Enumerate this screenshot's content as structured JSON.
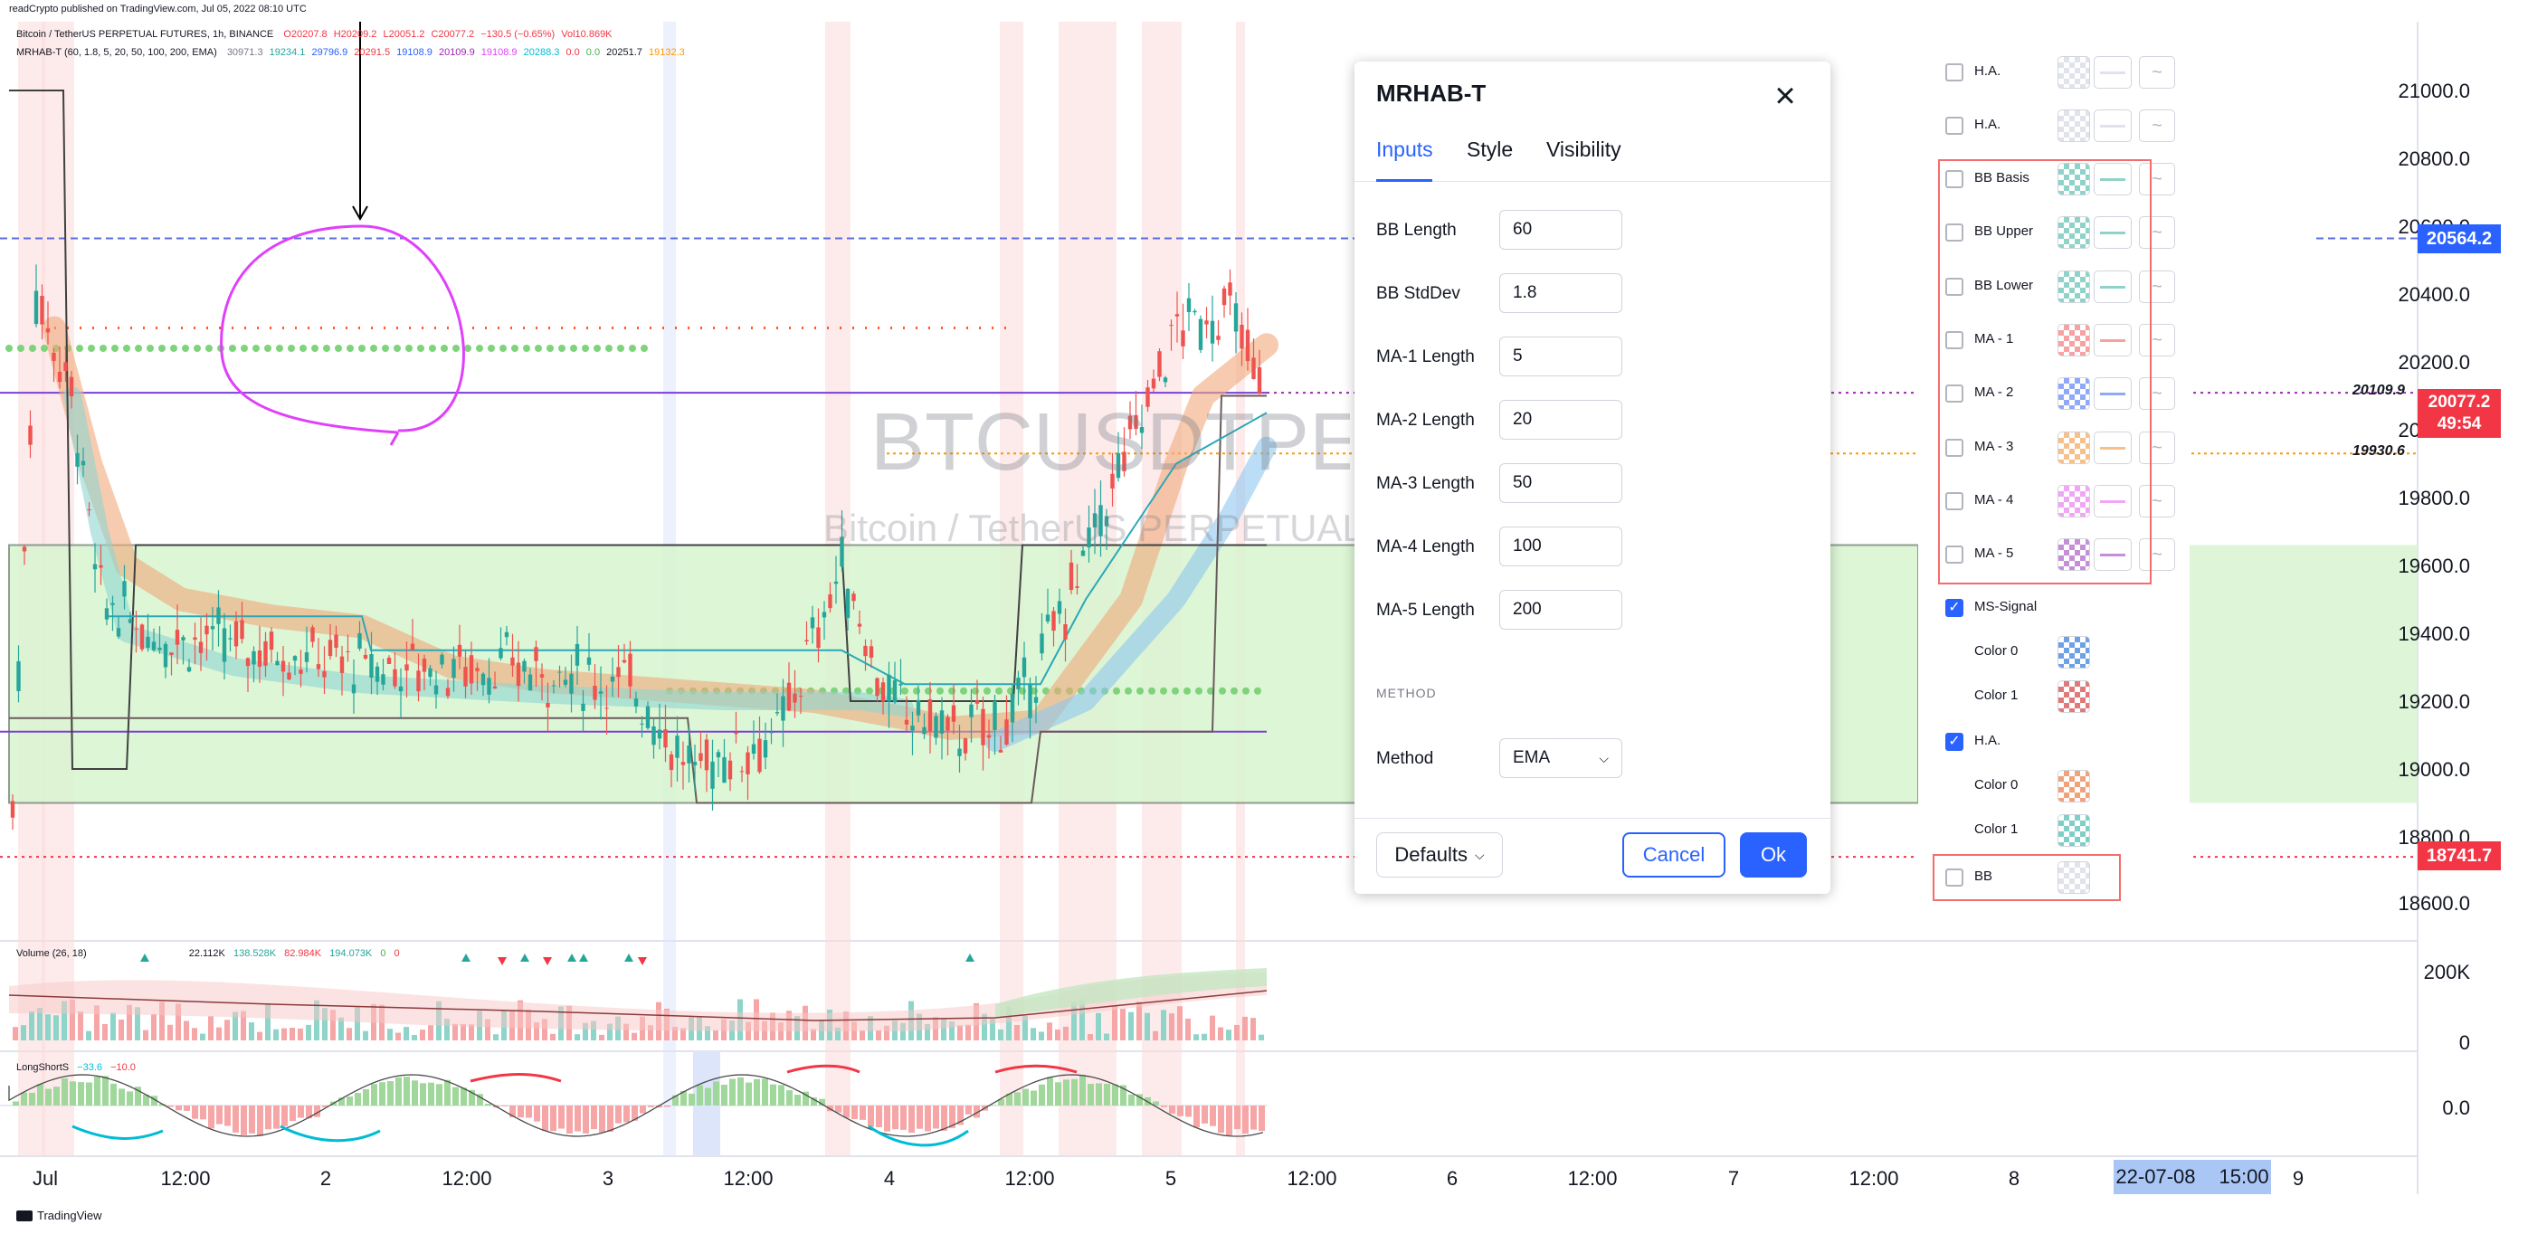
{
  "header": {
    "published": "readCrypto published on TradingView.com, Jul 05, 2022 08:10 UTC",
    "symbol_line": "Bitcoin / TetherUS PERPETUAL FUTURES, 1h, BINANCE",
    "ohlc": [
      "O20207.8",
      "H20209.2",
      "L20051.2",
      "C20077.2",
      "−130.5 (−0.65%)",
      "Vol10.869K"
    ],
    "indicator_line": "MRHAB-T (60, 1.8, 5, 20, 50, 100, 200, EMA)",
    "indicator_values": [
      "30971.3",
      "19234.1",
      "29796.9",
      "20291.5",
      "19108.9",
      "20109.9",
      "19108.9",
      "20288.3",
      "0.0",
      "0.0",
      "20251.7",
      "19132.3"
    ]
  },
  "watermark": {
    "ticker": "BTCUSDTPERP",
    "name": "Bitcoin / TetherUS PERPETUAL FUTURES"
  },
  "price_axis": {
    "labels": [
      "21000.0",
      "20800.0",
      "20600.0",
      "20400.0",
      "20200.0",
      "20000.0",
      "19800.0",
      "19600.0",
      "19400.0",
      "19200.0",
      "19000.0",
      "18800.0",
      "18600.0"
    ],
    "tags": {
      "level_top": "20564.2",
      "current": "20077.2",
      "countdown": "49:54",
      "level_bottom": "18741.7",
      "line_a": "20109.9",
      "line_b": "19930.6"
    },
    "volume_labels": [
      "200K",
      "0"
    ],
    "osc_label": "0.0"
  },
  "time_axis": {
    "labels": [
      "Jul",
      "12:00",
      "2",
      "12:00",
      "3",
      "12:00",
      "4",
      "12:00",
      "5",
      "12:00",
      "6",
      "12:00",
      "7",
      "12:00",
      "8",
      "9"
    ],
    "cursor_date": "22-07-08",
    "cursor_time": "15:00"
  },
  "volume_pane": {
    "title": "Volume (26, 18)",
    "values": [
      "22.112K",
      "138.528K",
      "82.984K",
      "194.073K",
      "0",
      "0"
    ]
  },
  "osc_pane": {
    "title": "LongShortS",
    "values": [
      "−33.6",
      "−10.0"
    ]
  },
  "dialog": {
    "title": "MRHAB-T",
    "tabs": [
      "Inputs",
      "Style",
      "Visibility"
    ],
    "active_tab": "Inputs",
    "inputs": [
      {
        "label": "BB Length",
        "value": "60"
      },
      {
        "label": "BB StdDev",
        "value": "1.8"
      },
      {
        "label": "MA-1 Length",
        "value": "5"
      },
      {
        "label": "MA-2 Length",
        "value": "20"
      },
      {
        "label": "MA-3 Length",
        "value": "50"
      },
      {
        "label": "MA-4 Length",
        "value": "100"
      },
      {
        "label": "MA-5 Length",
        "value": "200"
      }
    ],
    "method_section": "METHOD",
    "method_label": "Method",
    "method_value": "EMA",
    "defaults_label": "Defaults",
    "cancel_label": "Cancel",
    "ok_label": "Ok"
  },
  "style_panel": {
    "rows": [
      {
        "label": "H.A.",
        "checked": false,
        "color": "#e0e3eb"
      },
      {
        "label": "H.A.",
        "checked": false,
        "color": "#e0e3eb"
      },
      {
        "label": "BB Basis",
        "checked": false,
        "color": "#8fd3c8"
      },
      {
        "label": "BB Upper",
        "checked": false,
        "color": "#8fd3c8"
      },
      {
        "label": "BB Lower",
        "checked": false,
        "color": "#8fd3c8"
      },
      {
        "label": "MA - 1",
        "checked": false,
        "color": "#f7a1a1"
      },
      {
        "label": "MA - 2",
        "checked": false,
        "color": "#8fa9f7"
      },
      {
        "label": "MA - 3",
        "checked": false,
        "color": "#f7c08a"
      },
      {
        "label": "MA - 4",
        "checked": false,
        "color": "#f0a6f5"
      },
      {
        "label": "MA - 5",
        "checked": false,
        "color": "#c58fd8"
      }
    ],
    "ms_signal": {
      "label": "MS-Signal",
      "color0_label": "Color 0",
      "color1_label": "Color 1",
      "color0": "#6ea0e6",
      "color1": "#e07a7a"
    },
    "ha": {
      "label": "H.A.",
      "color0_label": "Color 0",
      "color1_label": "Color 1",
      "color0": "#f0a37a",
      "color1": "#7fcfc6"
    },
    "bb": {
      "label": "BB",
      "color": "#e0e3eb"
    }
  },
  "branding": "TradingView"
}
